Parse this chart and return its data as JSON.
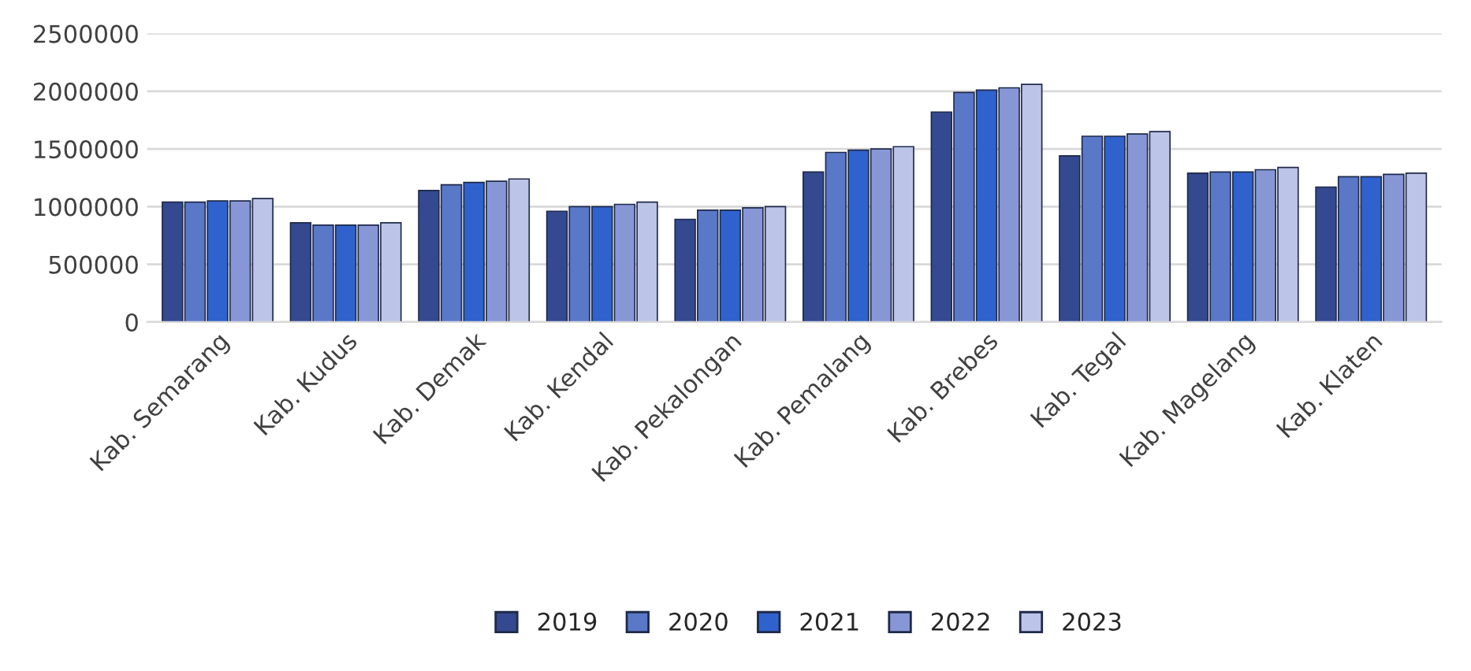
{
  "chart_data": {
    "type": "bar",
    "categories": [
      "Kab. Semarang",
      "Kab. Kudus",
      "Kab. Demak",
      "Kab. Kendal",
      "Kab. Pekalongan",
      "Kab. Pemalang",
      "Kab. Brebes",
      "Kab. Tegal",
      "Kab. Magelang",
      "Kab. Klaten"
    ],
    "series": [
      {
        "name": "2019",
        "color": "#34498f",
        "values": [
          1040000,
          860000,
          1140000,
          960000,
          890000,
          1300000,
          1820000,
          1440000,
          1290000,
          1170000
        ]
      },
      {
        "name": "2020",
        "color": "#5a78c8",
        "values": [
          1040000,
          840000,
          1190000,
          1000000,
          970000,
          1470000,
          1990000,
          1610000,
          1300000,
          1260000
        ]
      },
      {
        "name": "2021",
        "color": "#2f62cc",
        "values": [
          1050000,
          840000,
          1210000,
          1000000,
          970000,
          1490000,
          2010000,
          1610000,
          1300000,
          1260000
        ]
      },
      {
        "name": "2022",
        "color": "#8797d6",
        "values": [
          1050000,
          840000,
          1220000,
          1020000,
          990000,
          1500000,
          2030000,
          1630000,
          1320000,
          1280000
        ]
      },
      {
        "name": "2023",
        "color": "#bcc5e8",
        "values": [
          1070000,
          860000,
          1240000,
          1040000,
          1000000,
          1520000,
          2060000,
          1650000,
          1340000,
          1290000
        ]
      }
    ],
    "ylim": [
      0,
      2500000
    ],
    "yticks": [
      0,
      500000,
      1000000,
      1500000,
      2000000,
      2500000
    ],
    "grid": "y",
    "legend": "bottom"
  }
}
